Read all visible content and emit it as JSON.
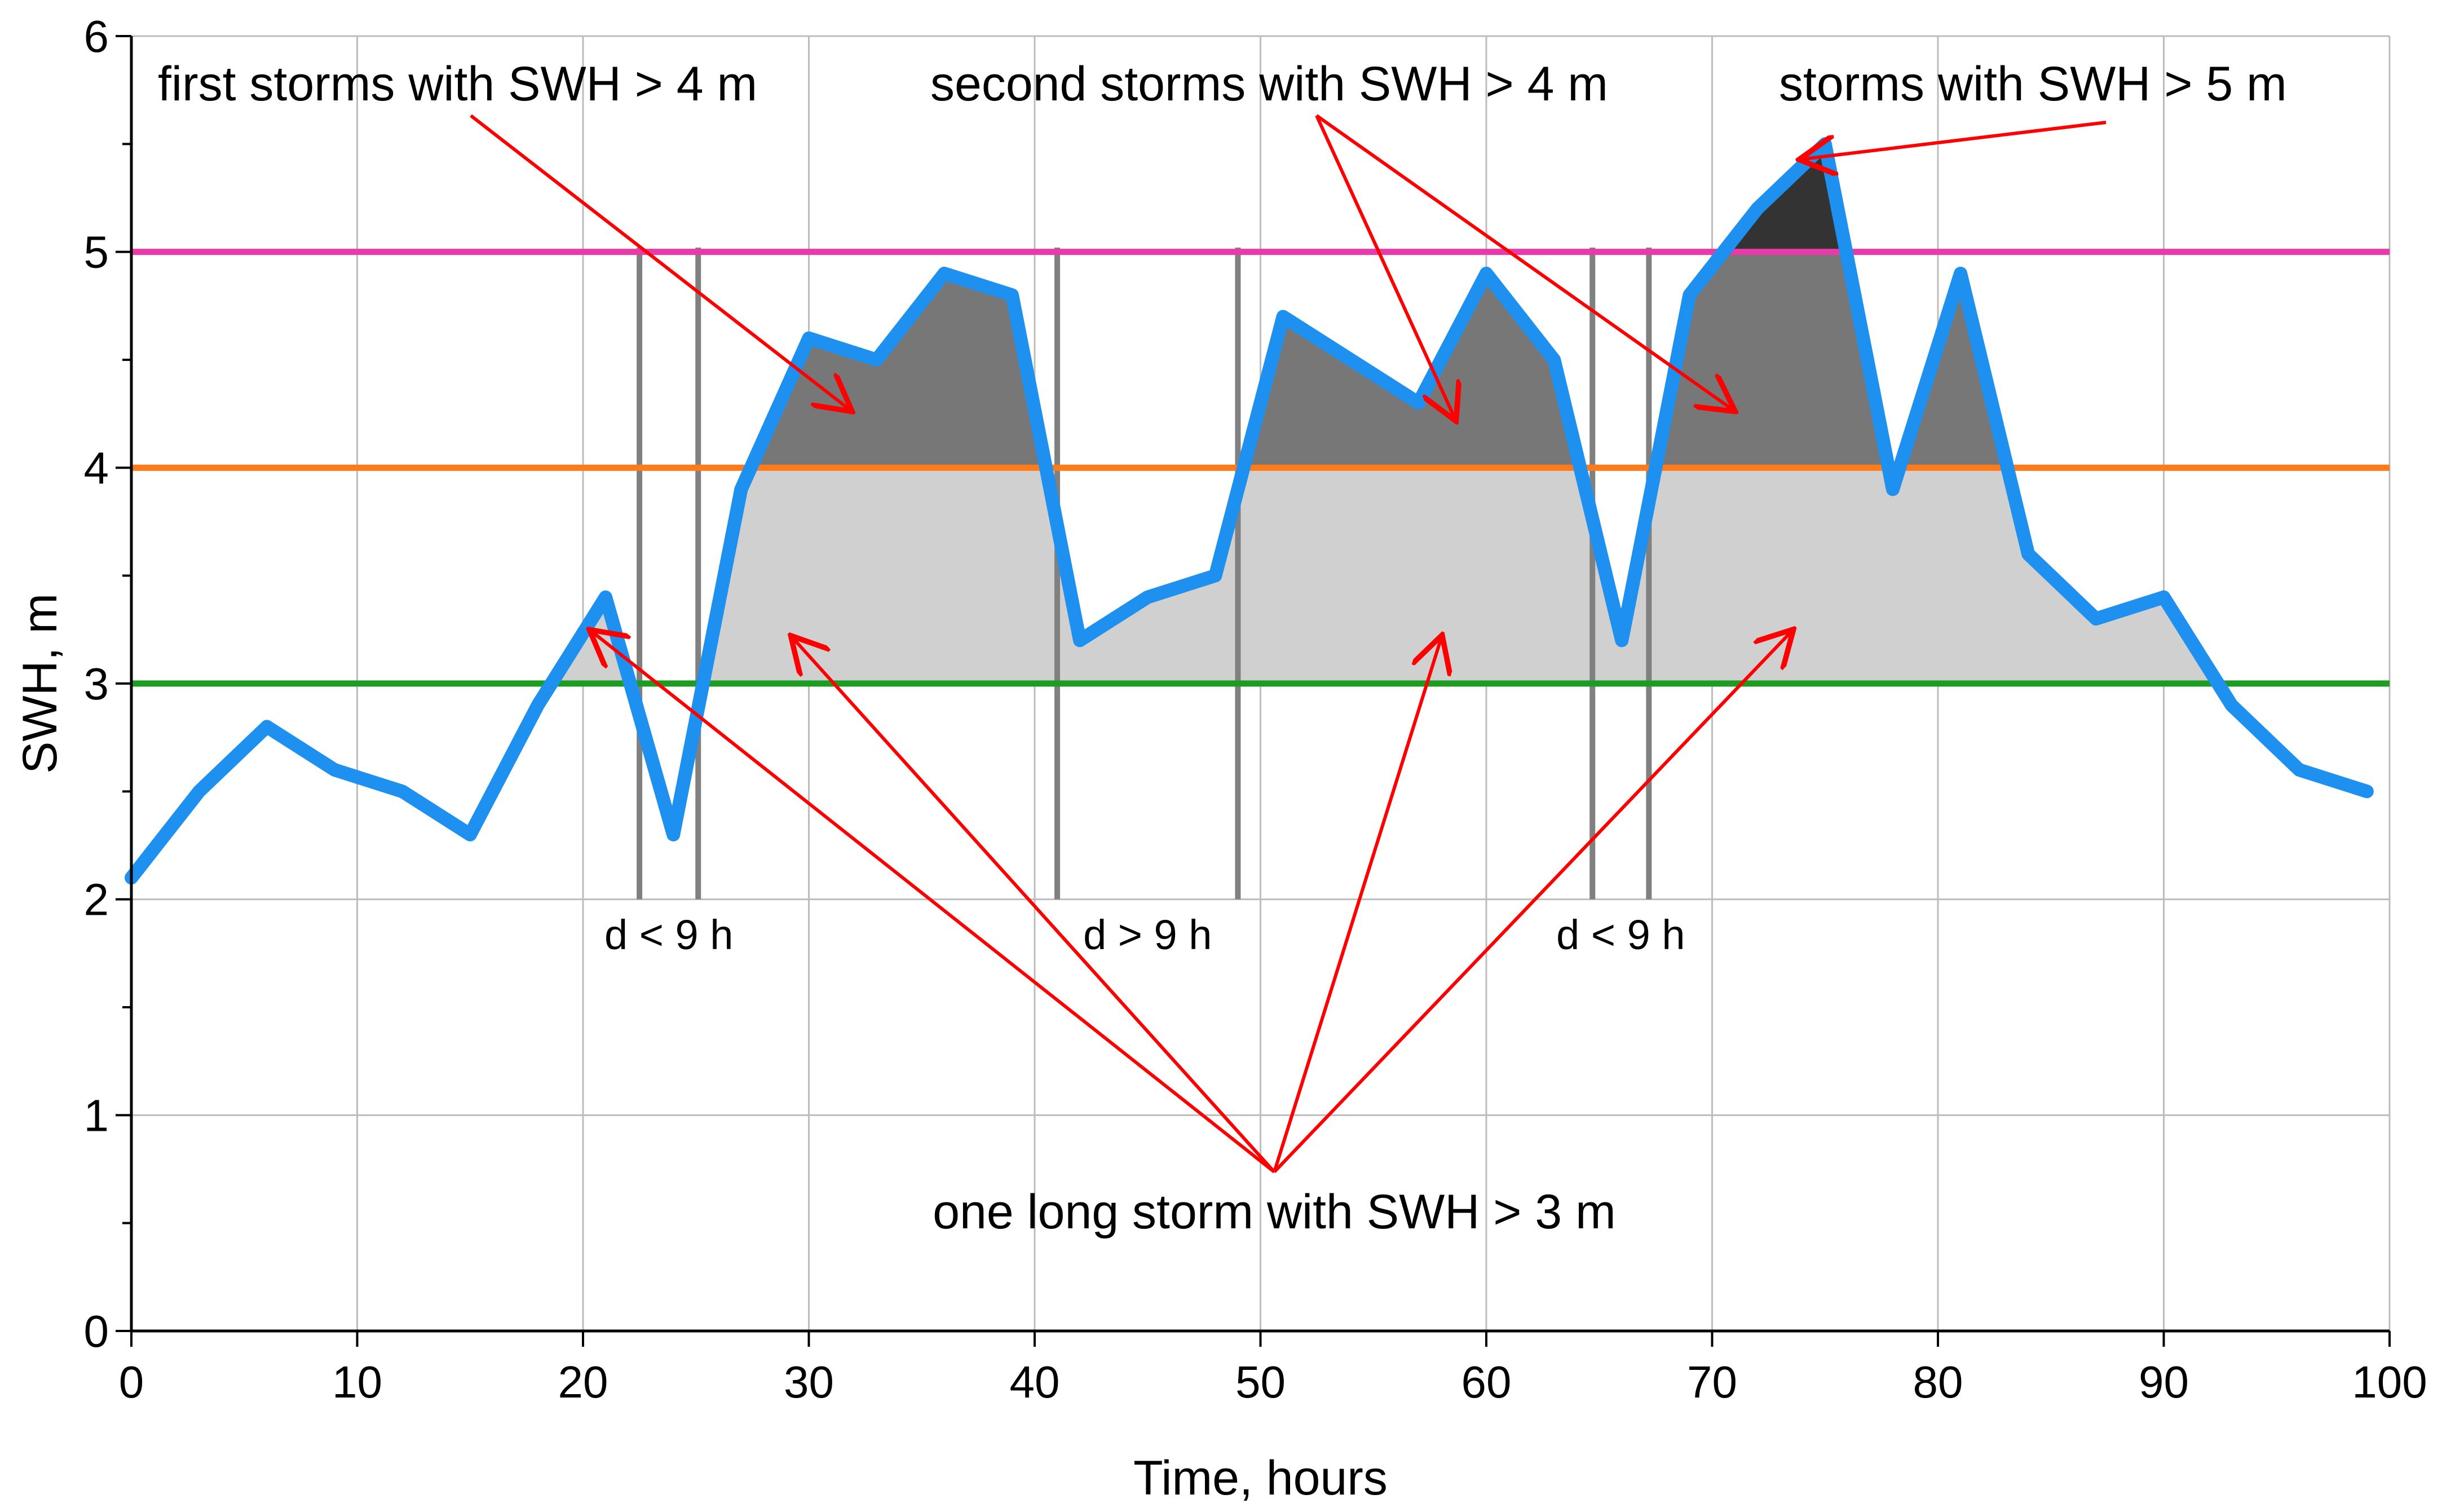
{
  "chart_data": {
    "type": "line",
    "title": "",
    "xlabel": "Time, hours",
    "ylabel": "SWH, m",
    "xlim": [
      0,
      100
    ],
    "ylim": [
      0,
      6
    ],
    "x_ticks": [
      0,
      10,
      20,
      30,
      40,
      50,
      60,
      70,
      80,
      90,
      100
    ],
    "y_ticks": [
      0,
      1,
      2,
      3,
      4,
      5,
      6
    ],
    "grid": true,
    "series": [
      {
        "name": "SWH",
        "color": "#1e90ef",
        "x": [
          0,
          3,
          6,
          9,
          12,
          15,
          18,
          21,
          24,
          27,
          30,
          33,
          36,
          39,
          42,
          45,
          48,
          51,
          54,
          57,
          60,
          63,
          66,
          69,
          72,
          75,
          78,
          81,
          84,
          87,
          90,
          93,
          96,
          99
        ],
        "y": [
          2.1,
          2.5,
          2.8,
          2.6,
          2.5,
          2.3,
          2.9,
          3.4,
          2.3,
          3.9,
          4.6,
          4.5,
          4.9,
          4.8,
          3.2,
          3.4,
          3.5,
          4.7,
          4.5,
          4.3,
          4.9,
          4.5,
          3.2,
          4.8,
          5.2,
          5.5,
          3.9,
          4.9,
          3.6,
          3.3,
          3.4,
          2.9,
          2.6,
          2.5
        ]
      }
    ],
    "thresholds": [
      {
        "value": 3,
        "color": "#1c9c22",
        "label": "SWH > 3 m"
      },
      {
        "value": 4,
        "color": "#ff7a1a",
        "label": "SWH > 4 m"
      },
      {
        "value": 5,
        "color": "#e83aa8",
        "label": "SWH > 5 m"
      }
    ],
    "fill_colors": {
      "above_3": "#d0d0d0",
      "above_4": "#777777",
      "above_5": "#333333"
    },
    "gap_markers": [
      {
        "x": [
          22.5,
          25.1
        ],
        "label": "d < 9 h"
      },
      {
        "x": [
          41.0,
          49.0
        ],
        "label": "d > 9 h"
      },
      {
        "x": [
          64.7,
          67.2
        ],
        "label": "d < 9 h"
      }
    ],
    "annotations": [
      {
        "text": "first storms with SWH > 4 m",
        "targets": [
          [
            31.8,
            4.27
          ]
        ]
      },
      {
        "text": "second storms with SWH > 4 m",
        "targets": [
          [
            58.6,
            4.23
          ],
          [
            70.9,
            4.27
          ]
        ]
      },
      {
        "text": "storms with SWH > 5 m",
        "targets": [
          [
            74.0,
            5.43
          ]
        ]
      },
      {
        "text": "one long storm with SWH > 3 m",
        "targets": [
          [
            20.4,
            3.24
          ],
          [
            29.3,
            3.21
          ],
          [
            58.0,
            3.21
          ],
          [
            73.5,
            3.24
          ]
        ]
      }
    ],
    "annotation_color": "#ff0000"
  }
}
